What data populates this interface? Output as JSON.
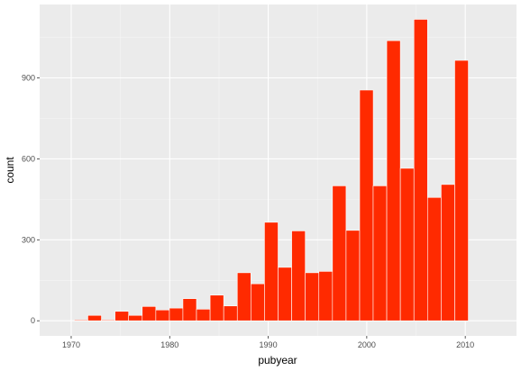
{
  "colors": {
    "panel_background": "#ebebeb",
    "grid_major": "#ffffff",
    "grid_minor": "#f5f5f5",
    "bar_fill": "#ff2a00",
    "bar_outline": "#ffffff",
    "tick_text": "#4d4d4d"
  },
  "chart_data": {
    "type": "bar",
    "title": "",
    "xlabel": "pubyear",
    "ylabel": "count",
    "xlim": [
      1966.8,
      2015.2
    ],
    "ylim": [
      -56,
      1172
    ],
    "grid": true,
    "x_ticks": [
      1970,
      1980,
      1990,
      2000,
      2010
    ],
    "y_ticks": [
      0,
      300,
      600,
      900
    ],
    "x_tick_labels": [
      "1970",
      "1980",
      "1990",
      "2000",
      "2010"
    ],
    "y_tick_labels": [
      "0",
      "300",
      "600",
      "900"
    ],
    "bin_width": 1.379,
    "bins": [
      {
        "x": 1971.0,
        "count": 3
      },
      {
        "x": 1972.38,
        "count": 20
      },
      {
        "x": 1973.76,
        "count": 3
      },
      {
        "x": 1975.14,
        "count": 35
      },
      {
        "x": 1976.52,
        "count": 20
      },
      {
        "x": 1977.9,
        "count": 53
      },
      {
        "x": 1979.28,
        "count": 40
      },
      {
        "x": 1980.66,
        "count": 47
      },
      {
        "x": 1982.03,
        "count": 82
      },
      {
        "x": 1983.41,
        "count": 43
      },
      {
        "x": 1984.79,
        "count": 95
      },
      {
        "x": 1986.17,
        "count": 55
      },
      {
        "x": 1987.55,
        "count": 178
      },
      {
        "x": 1988.93,
        "count": 137
      },
      {
        "x": 1990.31,
        "count": 365
      },
      {
        "x": 1991.69,
        "count": 198
      },
      {
        "x": 1993.07,
        "count": 333
      },
      {
        "x": 1994.45,
        "count": 178
      },
      {
        "x": 1995.83,
        "count": 183
      },
      {
        "x": 1997.21,
        "count": 500
      },
      {
        "x": 1998.59,
        "count": 335
      },
      {
        "x": 1999.97,
        "count": 855
      },
      {
        "x": 2001.34,
        "count": 500
      },
      {
        "x": 2002.72,
        "count": 1038
      },
      {
        "x": 2004.1,
        "count": 565
      },
      {
        "x": 2005.48,
        "count": 1117
      },
      {
        "x": 2006.86,
        "count": 457
      },
      {
        "x": 2008.24,
        "count": 505
      },
      {
        "x": 2009.62,
        "count": 965
      }
    ]
  }
}
